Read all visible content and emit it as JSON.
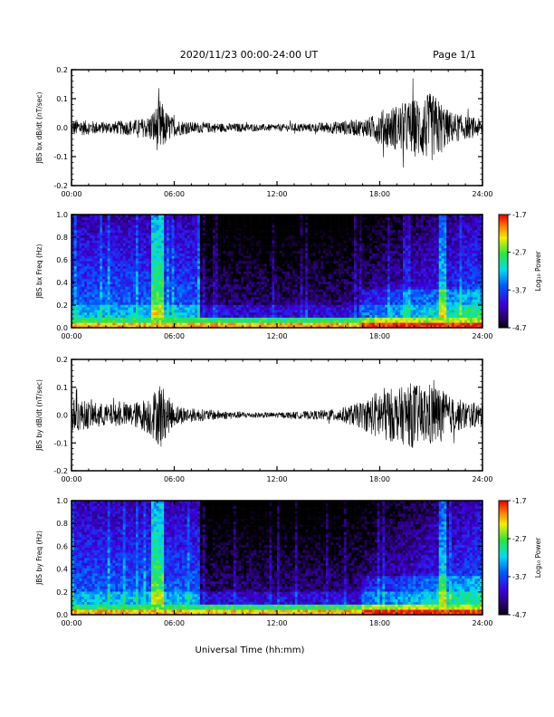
{
  "header": {
    "title": "2020/11/23  00:00-24:00 UT",
    "page": "Page 1/1"
  },
  "xlabel": "Universal Time (hh:mm)",
  "chart_data": [
    {
      "type": "line",
      "ylabel": "JBS bx dB/dt (nT/sec)",
      "xlim": [
        0,
        24
      ],
      "ylim": [
        -0.2,
        0.2
      ],
      "x_ticks": [
        "00:00",
        "06:00",
        "12:00",
        "18:00",
        "24:00"
      ],
      "y_ticks": [
        "0.2",
        "0.1",
        "0.0",
        "-0.1",
        "-0.2"
      ],
      "envelope": {
        "hours": [
          0,
          1,
          2,
          3,
          4,
          4.5,
          5,
          5.2,
          5.5,
          6,
          7,
          8,
          9,
          10,
          11,
          12,
          13,
          14,
          15,
          16,
          17,
          17.5,
          18,
          18.5,
          19,
          19.5,
          20,
          20.5,
          21,
          21.5,
          22,
          23,
          24
        ],
        "amplitude": [
          0.03,
          0.025,
          0.02,
          0.025,
          0.03,
          0.04,
          0.08,
          0.1,
          0.06,
          0.03,
          0.02,
          0.018,
          0.015,
          0.015,
          0.012,
          0.012,
          0.015,
          0.015,
          0.02,
          0.025,
          0.03,
          0.04,
          0.06,
          0.07,
          0.08,
          0.09,
          0.1,
          0.11,
          0.12,
          0.1,
          0.06,
          0.04,
          0.03
        ]
      }
    },
    {
      "type": "heatmap",
      "ylabel": "JBS bx Freq (Hz)",
      "xlim": [
        0,
        24
      ],
      "ylim": [
        0,
        1.0
      ],
      "x_ticks": [
        "00:00",
        "06:00",
        "12:00",
        "18:00",
        "24:00"
      ],
      "y_ticks": [
        "1.0",
        "0.8",
        "0.6",
        "0.4",
        "0.2",
        "0.0"
      ],
      "colorbar": {
        "label": "Log₁₀ Power",
        "range": [
          -4.7,
          -1.7
        ],
        "ticks": [
          "-1.7",
          "-2.7",
          "-3.7",
          "-4.7"
        ]
      }
    },
    {
      "type": "line",
      "ylabel": "JBS by dB/dt (nT/sec)",
      "xlim": [
        0,
        24
      ],
      "ylim": [
        -0.2,
        0.2
      ],
      "x_ticks": [
        "00:00",
        "06:00",
        "12:00",
        "18:00",
        "24:00"
      ],
      "y_ticks": [
        "0.2",
        "0.1",
        "0.0",
        "-0.1",
        "-0.2"
      ],
      "envelope": {
        "hours": [
          0,
          1,
          2,
          3,
          4,
          4.5,
          5,
          5.2,
          5.5,
          6,
          7,
          8,
          9,
          10,
          11,
          12,
          13,
          14,
          15,
          16,
          17,
          17.5,
          18,
          18.5,
          19,
          19.5,
          20,
          20.5,
          21,
          21.5,
          22,
          23,
          24
        ],
        "amplitude": [
          0.06,
          0.05,
          0.04,
          0.04,
          0.05,
          0.07,
          0.1,
          0.13,
          0.08,
          0.04,
          0.025,
          0.02,
          0.015,
          0.012,
          0.01,
          0.01,
          0.012,
          0.015,
          0.02,
          0.03,
          0.05,
          0.07,
          0.1,
          0.1,
          0.09,
          0.11,
          0.12,
          0.1,
          0.12,
          0.1,
          0.07,
          0.05,
          0.04
        ]
      }
    },
    {
      "type": "heatmap",
      "ylabel": "JBS by Freq (Hz)",
      "xlim": [
        0,
        24
      ],
      "ylim": [
        0,
        1.0
      ],
      "x_ticks": [
        "00:00",
        "06:00",
        "12:00",
        "18:00",
        "24:00"
      ],
      "y_ticks": [
        "1.0",
        "0.8",
        "0.6",
        "0.4",
        "0.2",
        "0.0"
      ],
      "colorbar": {
        "label": "Log₁₀ Power",
        "range": [
          -4.7,
          -1.7
        ],
        "ticks": [
          "-1.7",
          "-2.7",
          "-3.7",
          "-4.7"
        ]
      }
    }
  ]
}
